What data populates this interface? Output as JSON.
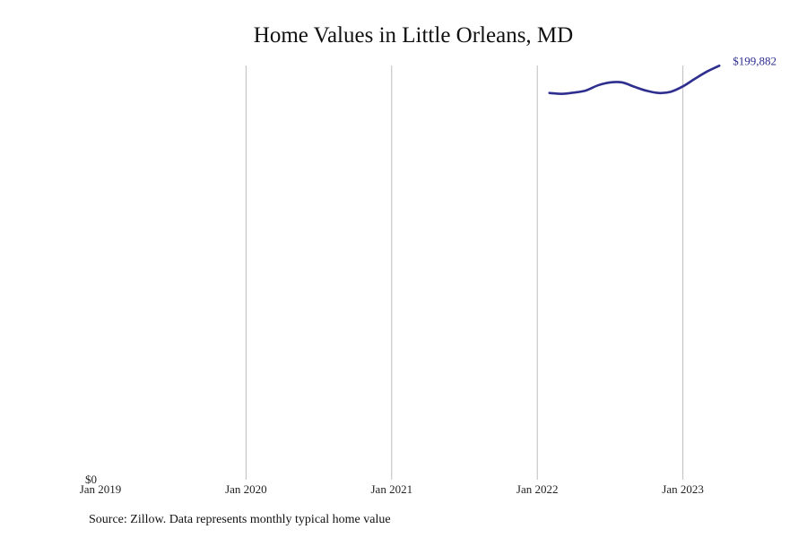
{
  "chart_data": {
    "type": "line",
    "title": "Home Values in Little Orleans, MD",
    "xlabel": "",
    "ylabel": "",
    "x_ticks": [
      "Jan 2019",
      "Jan 2020",
      "Jan 2021",
      "Jan 2022",
      "Jan 2023"
    ],
    "y_ticks": [
      "$0"
    ],
    "xlim": [
      "2019-01",
      "2023-10"
    ],
    "ylim": [
      0,
      200000
    ],
    "grid": {
      "vertical": true,
      "horizontal": false
    },
    "legend": "none",
    "series": [
      {
        "color": "#2e2e8f",
        "end_label": "$199,882",
        "points": [
          {
            "x": "2022-02",
            "y": 186700
          },
          {
            "x": "2022-03",
            "y": 186300
          },
          {
            "x": "2022-04",
            "y": 186900
          },
          {
            "x": "2022-05",
            "y": 187900
          },
          {
            "x": "2022-06",
            "y": 190400
          },
          {
            "x": "2022-07",
            "y": 191800
          },
          {
            "x": "2022-08",
            "y": 191800
          },
          {
            "x": "2022-09",
            "y": 189700
          },
          {
            "x": "2022-10",
            "y": 187800
          },
          {
            "x": "2022-11",
            "y": 186700
          },
          {
            "x": "2022-12",
            "y": 187300
          },
          {
            "x": "2023-01",
            "y": 189900
          },
          {
            "x": "2023-02",
            "y": 193600
          },
          {
            "x": "2023-03",
            "y": 197100
          },
          {
            "x": "2023-04",
            "y": 199882
          }
        ]
      }
    ]
  },
  "footer": {
    "source": "Source: Zillow. Data represents monthly typical home value"
  }
}
